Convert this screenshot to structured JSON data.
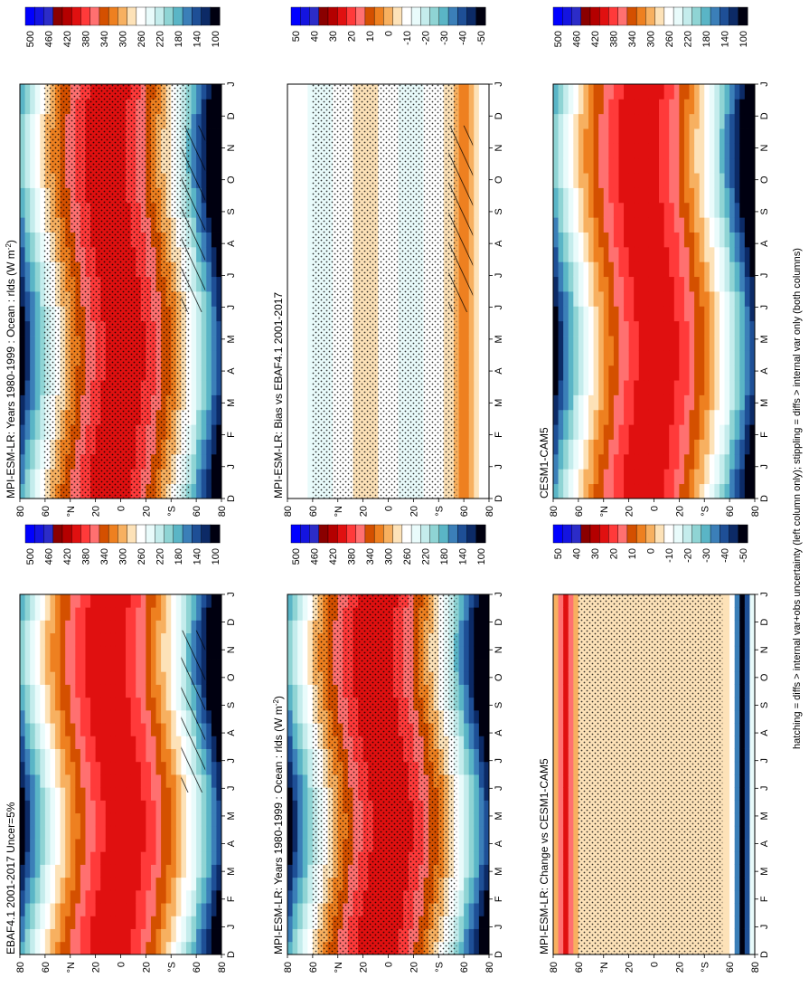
{
  "page": {
    "footnote": "hatching = diffs > internal var+obs uncertainty (left column only); stippling = diffs > internal var only (both columns)"
  },
  "axes": {
    "lat_ticks": [
      "80",
      "60",
      "°N",
      "20",
      "0",
      "20",
      "°S",
      "60",
      "80"
    ],
    "month_ticks": [
      "D",
      "J",
      "F",
      "M",
      "A",
      "M",
      "J",
      "J",
      "A",
      "S",
      "O",
      "N",
      "D",
      "J"
    ]
  },
  "colors": {
    "absolute_palette": [
      "#0000ff",
      "#1414e0",
      "#2c2cc8",
      "#8a0000",
      "#b40000",
      "#e01010",
      "#ff3a3a",
      "#ff7070",
      "#d45000",
      "#ee8020",
      "#f7b060",
      "#fde2b8",
      "#ffffff",
      "#e9fbfb",
      "#c4ecec",
      "#8fd4d4",
      "#5ab5c6",
      "#3b7fb8",
      "#1e4f96",
      "#0c2a66",
      "#000010"
    ],
    "difference_palette": [
      "#0000ff",
      "#1414e0",
      "#2c2cc8",
      "#8a0000",
      "#b40000",
      "#e01010",
      "#ff3a3a",
      "#ff7070",
      "#d45000",
      "#ee8020",
      "#f7b060",
      "#fde2b8",
      "#ffffff",
      "#e9fbfb",
      "#c4ecec",
      "#8fd4d4",
      "#5ab5c6",
      "#3b7fb8",
      "#1e4f96",
      "#0c2a66",
      "#000010"
    ]
  },
  "chart_data": [
    {
      "type": "heatmap",
      "title": "MPI-ESM-LR: Years 1980-1999 : Ocean : rlds (W m",
      "units_superscript": "-2",
      "units_close": ")",
      "x": "latitude",
      "y": "month",
      "colorbar_labels": [
        "500",
        "460",
        "420",
        "380",
        "340",
        "300",
        "260",
        "220",
        "180",
        "140",
        "100"
      ],
      "hatching": "lower-right",
      "stipple": "dense"
    },
    {
      "type": "heatmap",
      "title": "MPI-ESM-LR: Years 1980-1999 : Ocean : rlds (W m",
      "units_superscript": "-2",
      "units_close": ")",
      "x": "latitude",
      "y": "month",
      "colorbar_labels": [
        "500",
        "460",
        "420",
        "380",
        "340",
        "300",
        "260",
        "220",
        "180",
        "140",
        "100"
      ],
      "hatching": "none",
      "stipple": "dense"
    },
    {
      "type": "heatmap",
      "title": "EBAF4.1 2001-2017 Uncer=5%",
      "x": "latitude",
      "y": "month",
      "colorbar_labels": [
        "500",
        "460",
        "420",
        "380",
        "340",
        "300",
        "260",
        "220",
        "180",
        "140",
        "100"
      ],
      "hatching": "lower-right",
      "stipple": "none"
    },
    {
      "type": "heatmap",
      "title": "CESM1-CAM5",
      "x": "latitude",
      "y": "month",
      "colorbar_labels": [
        "500",
        "460",
        "420",
        "380",
        "340",
        "300",
        "260",
        "220",
        "180",
        "140",
        "100"
      ],
      "hatching": "none",
      "stipple": "none"
    },
    {
      "type": "heatmap",
      "title": "MPI-ESM-LR: Bias vs EBAF4.1 2001-2017",
      "x": "latitude",
      "y": "month",
      "colorbar_labels": [
        "50",
        "40",
        "30",
        "20",
        "10",
        "0",
        "-10",
        "-20",
        "-30",
        "-40",
        "-50"
      ],
      "hatching": "lower-right",
      "stipple": "dense"
    },
    {
      "type": "heatmap",
      "title": "MPI-ESM-LR: Change vs CESM1-CAM5",
      "x": "latitude",
      "y": "month",
      "colorbar_labels": [
        "50",
        "40",
        "30",
        "20",
        "10",
        "0",
        "-10",
        "-20",
        "-30",
        "-40",
        "-50"
      ],
      "hatching": "none",
      "stipple": "dense"
    }
  ]
}
